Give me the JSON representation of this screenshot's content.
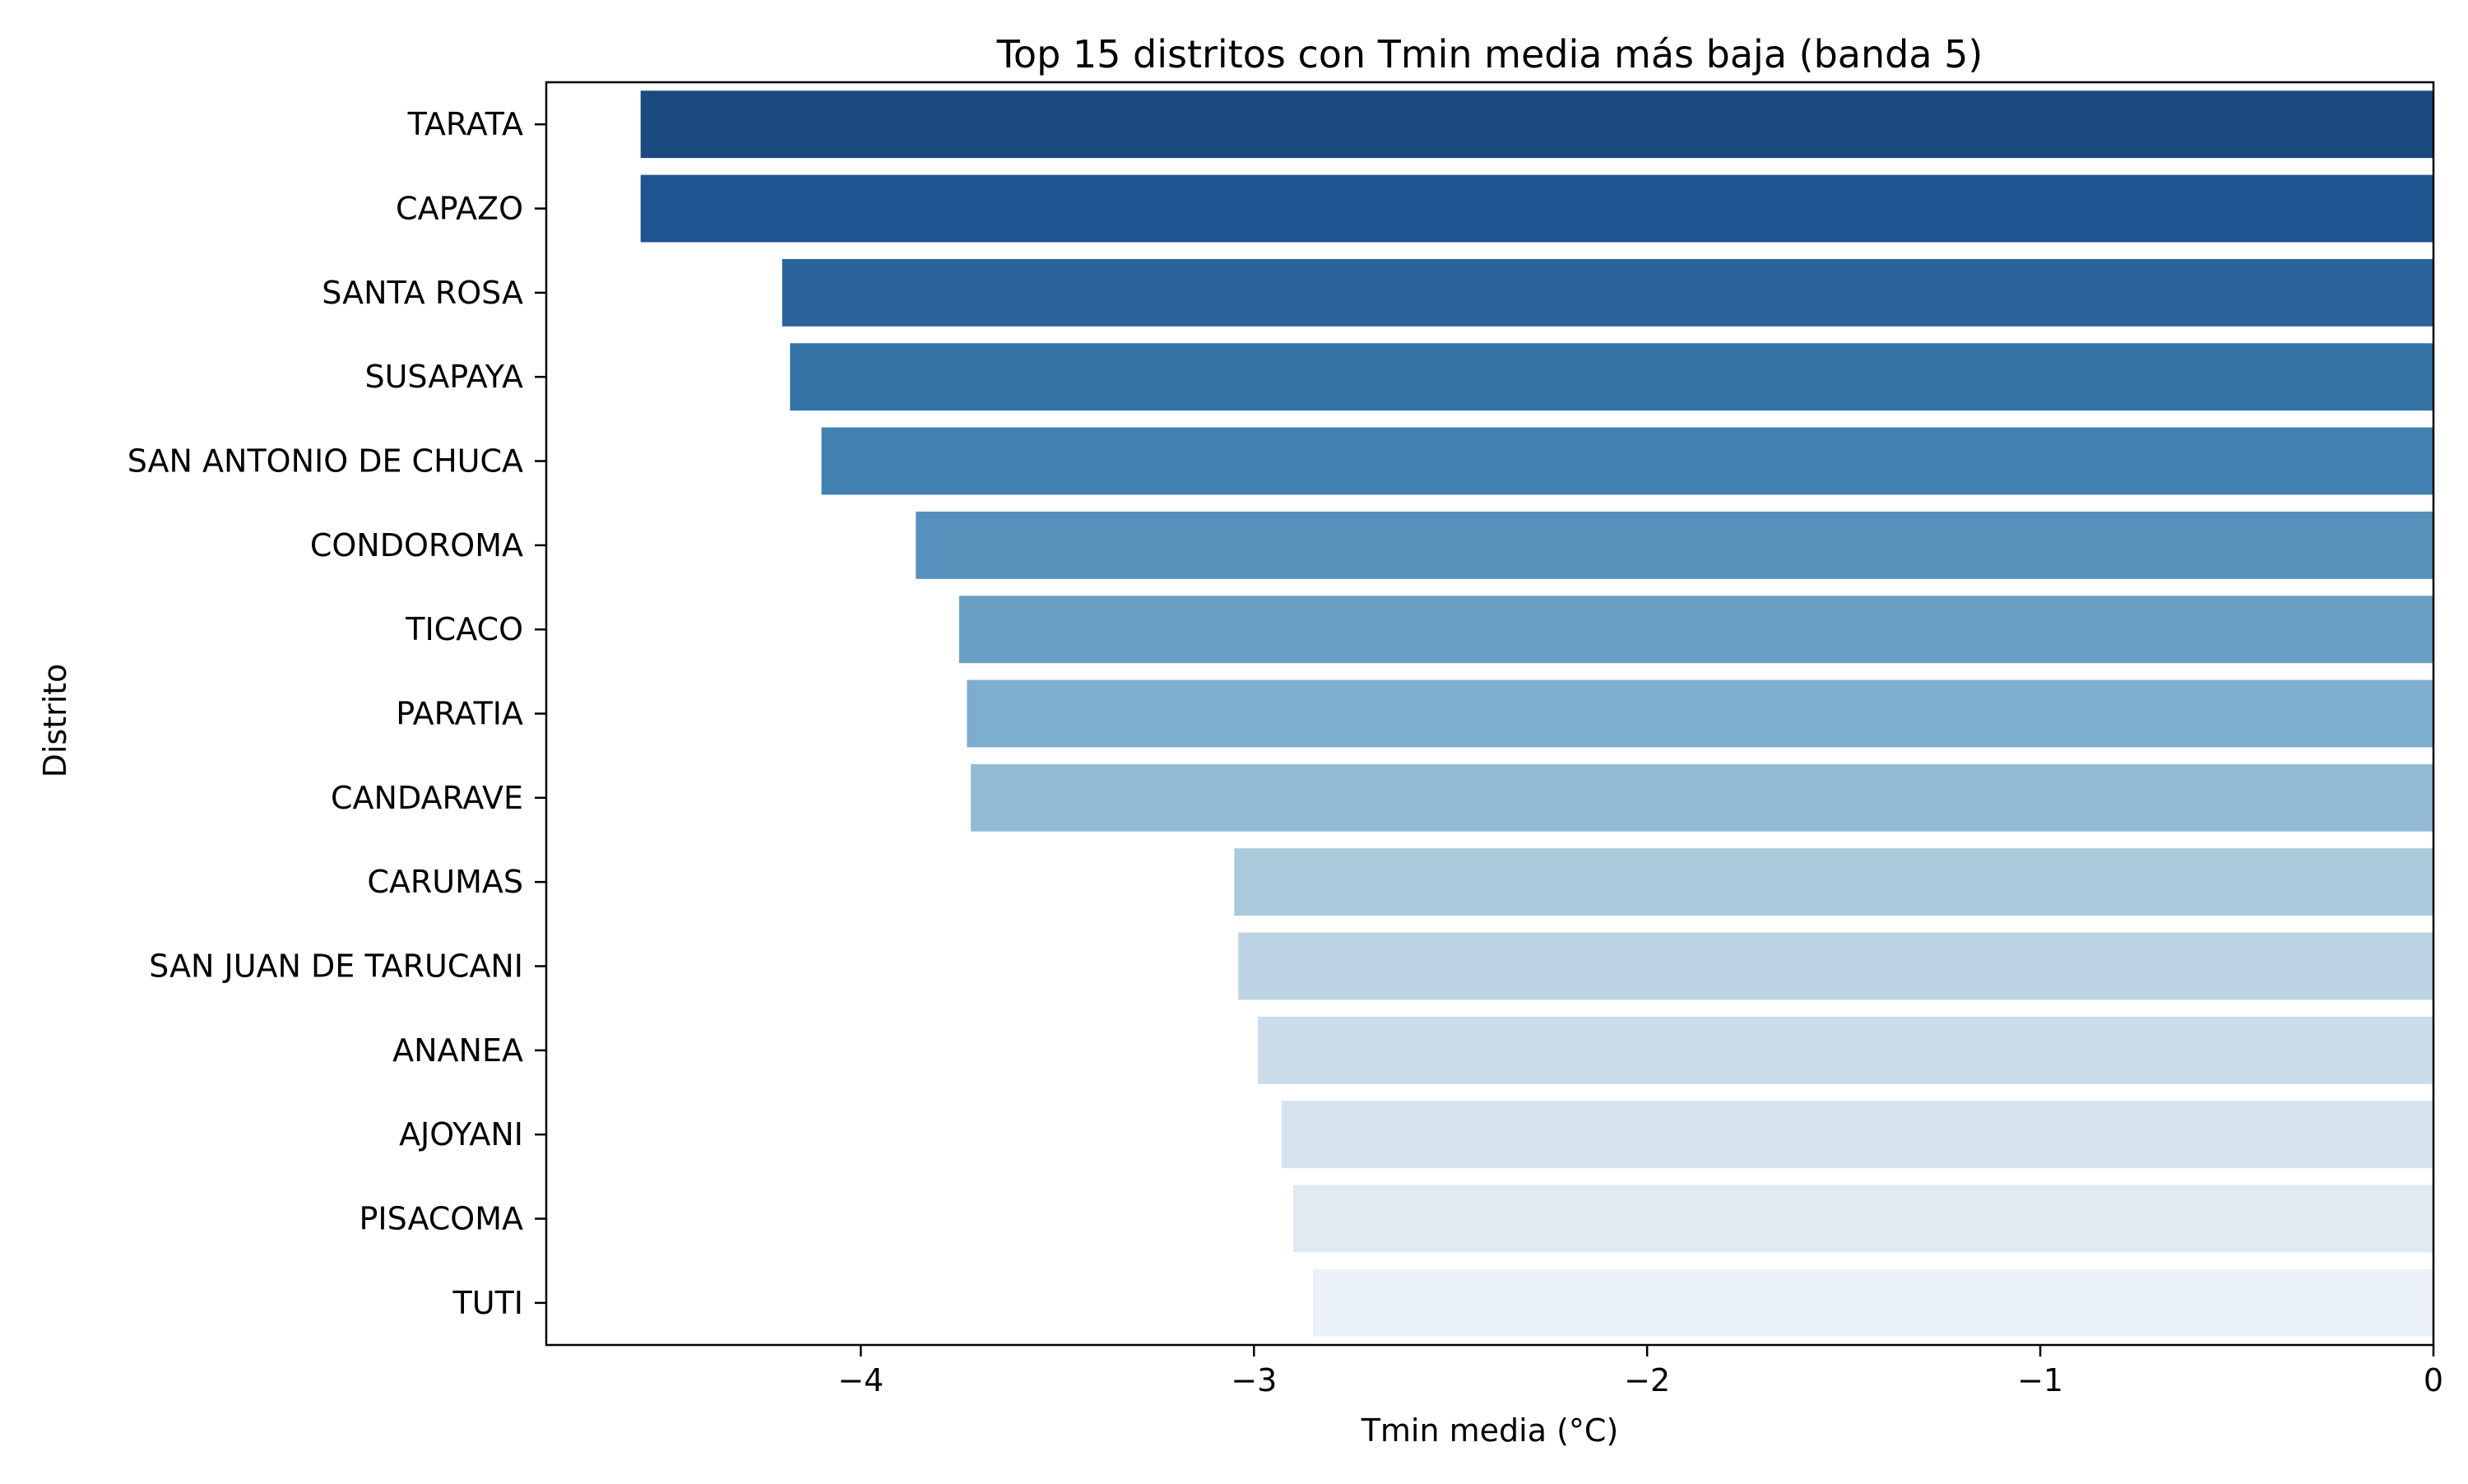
{
  "chart_data": {
    "type": "bar",
    "orientation": "horizontal",
    "title": "Top 15 distritos con Tmin media más baja (banda 5)",
    "xlabel": "Tmin media (°C)",
    "ylabel": "Distrito",
    "categories": [
      "TARATA",
      "CAPAZO",
      "SANTA ROSA",
      "SUSAPAYA",
      "SAN ANTONIO DE CHUCA",
      "CONDOROMA",
      "TICACO",
      "PARATIA",
      "CANDARAVE",
      "CARUMAS",
      "SAN JUAN DE TARUCANI",
      "ANANEA",
      "AJOYANI",
      "PISACOMA",
      "TUTI"
    ],
    "values": [
      -4.56,
      -4.56,
      -4.2,
      -4.18,
      -4.1,
      -3.86,
      -3.75,
      -3.73,
      -3.72,
      -3.05,
      -3.04,
      -2.99,
      -2.93,
      -2.9,
      -2.85
    ],
    "colors": [
      "#1a4a80",
      "#1f5590",
      "#2a6399",
      "#3573a7",
      "#4381b1",
      "#5591bb",
      "#6a9fc4",
      "#7eaecf",
      "#93bbd5",
      "#aac9da",
      "#bcd4e4",
      "#cbdbe9",
      "#d7e3ef",
      "#e1e9f3",
      "#ebf1f8"
    ],
    "xlim": [
      -4.8,
      0
    ],
    "xticks": [
      -4,
      -3,
      -2,
      -1,
      0
    ],
    "xtick_labels": [
      "−4",
      "−3",
      "−2",
      "−1",
      "0"
    ],
    "grid": false,
    "legend": "none"
  }
}
